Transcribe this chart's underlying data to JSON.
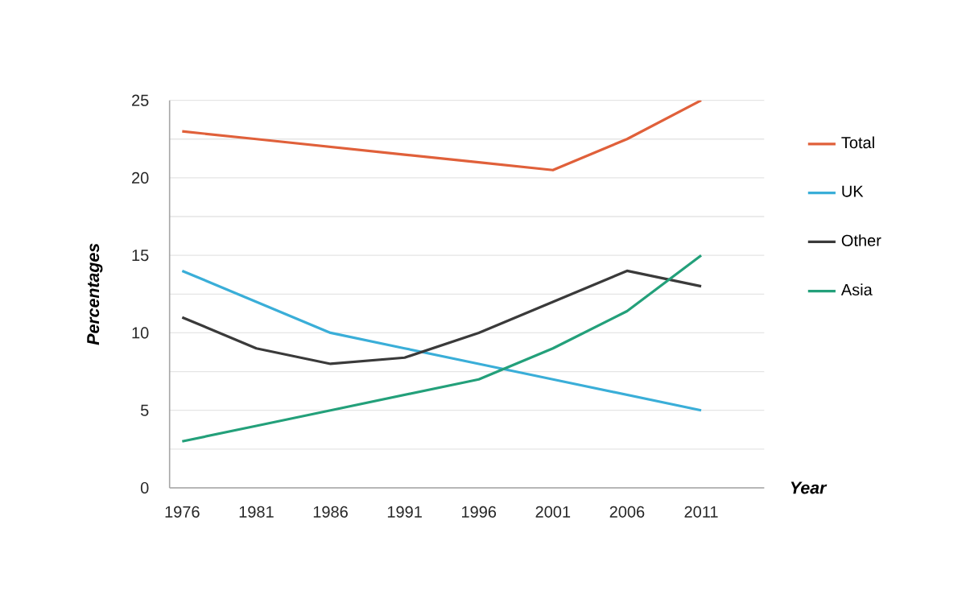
{
  "chart_data": {
    "type": "line",
    "categories": [
      "1976",
      "1981",
      "1986",
      "1991",
      "1996",
      "2001",
      "2006",
      "2011"
    ],
    "series": [
      {
        "name": "Total",
        "color": "#e0603a",
        "values": [
          23,
          22.5,
          22,
          21.5,
          21,
          20.5,
          22.5,
          25
        ]
      },
      {
        "name": "UK",
        "color": "#3aaed8",
        "values": [
          14,
          12,
          10,
          9,
          8,
          7,
          6,
          5
        ]
      },
      {
        "name": "Other",
        "color": "#3a3a3a",
        "values": [
          11,
          9,
          8,
          8.4,
          10,
          12,
          14,
          13
        ]
      },
      {
        "name": "Asia",
        "color": "#23a07a",
        "values": [
          3,
          4,
          5,
          6,
          7,
          9,
          11.4,
          15
        ]
      }
    ],
    "xlabel": "Year",
    "ylabel": "Percentages",
    "ylim": [
      0,
      25
    ],
    "yticks": [
      0,
      {
        "value": 2.5,
        "label": null
      },
      5,
      {
        "value": 7.5,
        "label": null
      },
      10,
      {
        "value": 12.5,
        "label": null
      },
      15,
      {
        "value": 17.5,
        "label": null
      },
      20,
      {
        "value": 22.5,
        "label": null
      },
      25
    ],
    "grid": "y",
    "legend": "right",
    "marker": "none",
    "line_style": "solid"
  }
}
